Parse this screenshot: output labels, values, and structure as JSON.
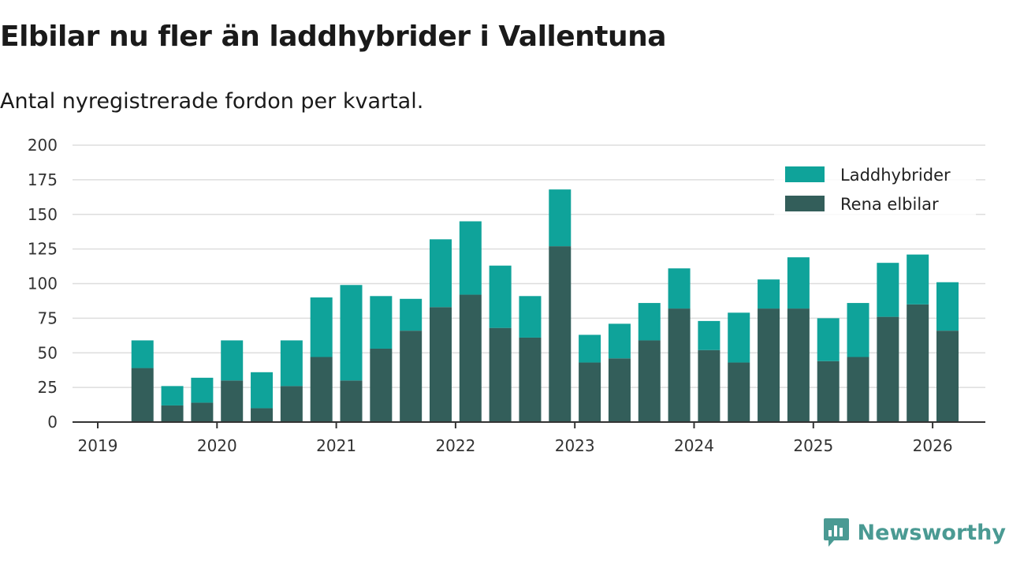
{
  "header": {
    "title": "Elbilar nu fler än laddhybrider i Vallentuna",
    "subtitle": "Antal nyregistrerade fordon per kvartal."
  },
  "brand": {
    "name": "Newsworthy",
    "icon": "newsworthy-logo-icon"
  },
  "colors": {
    "laddhybrider": "#0fa39a",
    "elbilar": "#335e5a",
    "grid": "#dddddd",
    "axis": "#333333"
  },
  "chart_data": {
    "type": "bar",
    "stacked": true,
    "title": "Elbilar nu fler än laddhybrider i Vallentuna",
    "subtitle": "Antal nyregistrerade fordon per kvartal.",
    "xlabel": "",
    "ylabel": "",
    "ylim": [
      0,
      200
    ],
    "yticks": [
      0,
      25,
      50,
      75,
      100,
      125,
      150,
      175,
      200
    ],
    "xticks": [
      "2019",
      "2020",
      "2021",
      "2022",
      "2023",
      "2024",
      "2025",
      "2026"
    ],
    "grid": true,
    "legend_position": "top-right",
    "categories": [
      "2019 Q2",
      "2019 Q3",
      "2019 Q4",
      "2020 Q1",
      "2020 Q2",
      "2020 Q3",
      "2020 Q4",
      "2021 Q1",
      "2021 Q2",
      "2021 Q3",
      "2021 Q4",
      "2022 Q1",
      "2022 Q2",
      "2022 Q3",
      "2022 Q4",
      "2023 Q1",
      "2023 Q2",
      "2023 Q3",
      "2023 Q4",
      "2024 Q1",
      "2024 Q2",
      "2024 Q3",
      "2024 Q4",
      "2025 Q1",
      "2025 Q2",
      "2025 Q3",
      "2025 Q4",
      "2026 Q1"
    ],
    "series": [
      {
        "name": "Rena elbilar",
        "values": [
          39,
          12,
          14,
          30,
          10,
          26,
          47,
          30,
          53,
          66,
          83,
          92,
          68,
          61,
          127,
          43,
          46,
          59,
          82,
          52,
          43,
          82,
          82,
          44,
          47,
          76,
          85,
          66
        ]
      },
      {
        "name": "Laddhybrider",
        "values": [
          20,
          14,
          18,
          29,
          26,
          33,
          43,
          69,
          38,
          23,
          49,
          53,
          45,
          30,
          41,
          20,
          25,
          27,
          29,
          21,
          36,
          21,
          37,
          31,
          39,
          39,
          36,
          35
        ]
      }
    ]
  }
}
